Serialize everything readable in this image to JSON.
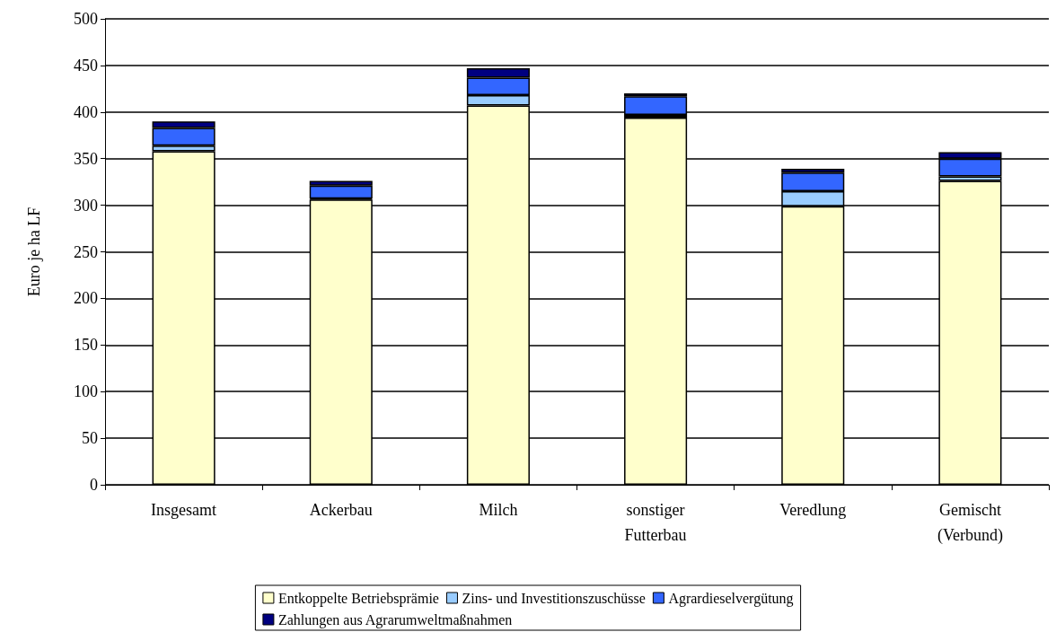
{
  "chart_data": {
    "type": "bar",
    "stacked": true,
    "ylabel": "Euro je ha LF",
    "categories": [
      "Insgesamt",
      "Ackerbau",
      "Milch",
      "sonstiger\nFutterbau",
      "Veredlung",
      "Gemischt\n(Verbund)"
    ],
    "series": [
      {
        "name": "Entkoppelte Betriebsprämie",
        "color": "#ffffcc",
        "values": [
          358,
          306,
          407,
          394,
          299,
          326
        ]
      },
      {
        "name": "Zins- und Investitionszuschüsse",
        "color": "#99ccff",
        "values": [
          6,
          1,
          11,
          3,
          16,
          5
        ]
      },
      {
        "name": "Agrardieselvergütung",
        "color": "#3366ff",
        "values": [
          19,
          14,
          19,
          20,
          20,
          19
        ]
      },
      {
        "name": "Zahlungen aus Agrarumweltmaßnahmen",
        "color": "#000080",
        "values": [
          7,
          5,
          10,
          3,
          4,
          7
        ]
      }
    ],
    "ylim": [
      0,
      500
    ],
    "yticks": [
      0,
      50,
      100,
      150,
      200,
      250,
      300,
      350,
      400,
      450,
      500
    ],
    "grid": "y",
    "legend": "bottom"
  }
}
